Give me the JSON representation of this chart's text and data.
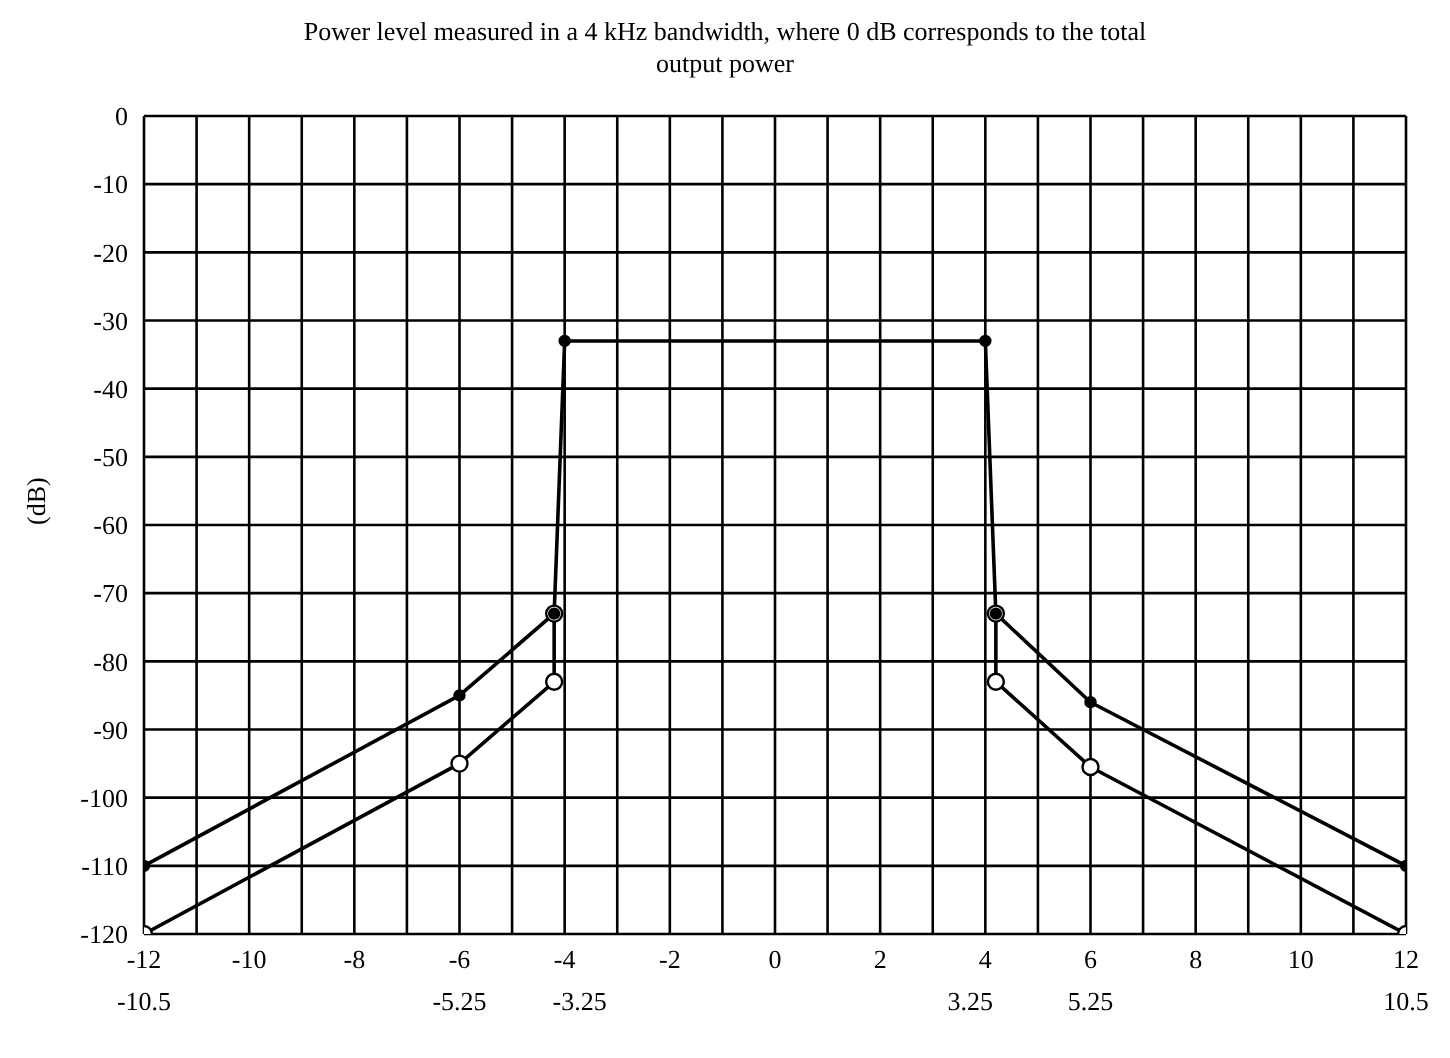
{
  "chart_data": {
    "type": "line",
    "title": "Power level measured in a 4 kHz bandwidth, where 0 dB corresponds to the total output power",
    "ylabel": "(dB)",
    "xlim": [
      -12,
      12
    ],
    "xticks": [
      -12,
      {
        "value": -11,
        "label": null
      },
      -10,
      {
        "value": -9,
        "label": null
      },
      -8,
      {
        "value": -7,
        "label": null
      },
      -6,
      {
        "value": -5,
        "label": null
      },
      -4,
      {
        "value": -3,
        "label": null
      },
      -2,
      {
        "value": -1,
        "label": null
      },
      0,
      {
        "value": 1,
        "label": null
      },
      2,
      {
        "value": 3,
        "label": null
      },
      4,
      {
        "value": 5,
        "label": null
      },
      6,
      {
        "value": 7,
        "label": null
      },
      8,
      {
        "value": 9,
        "label": null
      },
      10,
      {
        "value": 11,
        "label": null
      },
      12
    ],
    "x2lim": [
      -10.5,
      10.5
    ],
    "x2ticks": [
      -10.5,
      -5.25,
      -3.25,
      3.25,
      5.25,
      10.5
    ],
    "ylim": [
      -120,
      0
    ],
    "yticks": [
      -120,
      -110,
      -100,
      -90,
      -80,
      -70,
      -60,
      -50,
      -40,
      -30,
      -20,
      -10,
      0
    ],
    "grid": true,
    "marker": "circle",
    "line_style": "solid",
    "series": [
      {
        "color": "#000000",
        "x": [
          -12,
          -6,
          -4.2,
          -4,
          4,
          4.2,
          6,
          12
        ],
        "values": [
          -110,
          -85,
          -73,
          -33,
          -33,
          -73,
          -86,
          -110
        ]
      },
      {
        "color": "#000000",
        "x": [
          -12,
          -6,
          -4.2,
          -4.2,
          0,
          4.2,
          4.2,
          6,
          12
        ],
        "values": [
          -120,
          -95,
          -83,
          -73,
          null,
          -73,
          -83,
          -95.5,
          -120
        ]
      }
    ]
  }
}
